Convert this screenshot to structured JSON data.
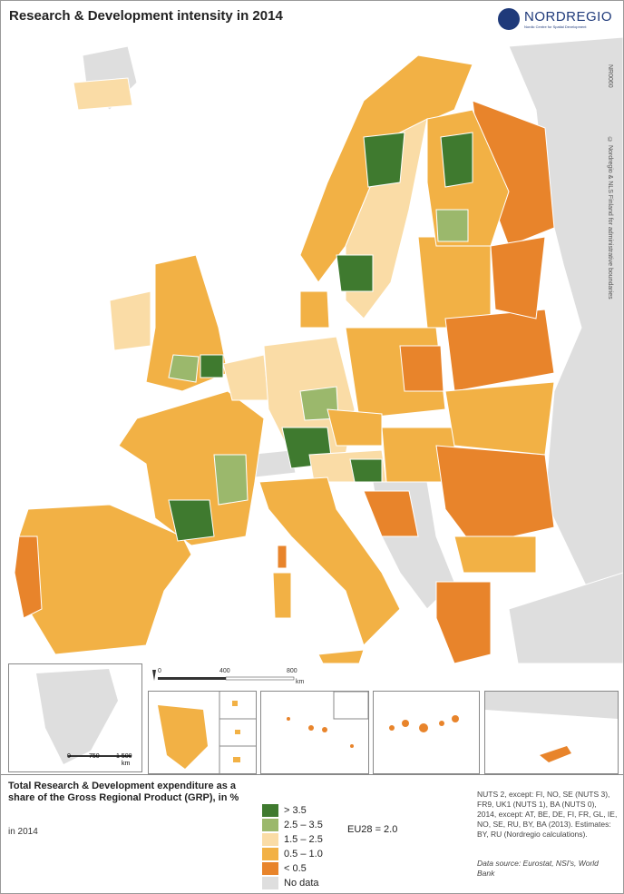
{
  "title": "Research & Development intensity in 2014",
  "logo": {
    "name": "NORDREGIO",
    "subtitle": "Nordic Centre for Spatial Development"
  },
  "map_code": "NR0060",
  "copyright": "© Nordregio & NLS Finland for administrative boundaries",
  "scale_main": {
    "ticks": [
      "0",
      "400",
      "800"
    ],
    "unit": "km"
  },
  "scale_greenland": {
    "ticks": [
      "0",
      "750",
      "1 500"
    ],
    "unit": "km"
  },
  "colors": {
    "gt35": "#3f7a2f",
    "25_35": "#9bb86c",
    "15_25": "#fadca6",
    "05_10": "#f2b145",
    "lt05": "#e8842b",
    "nodata": "#dedede",
    "brand": "#1f3a7a"
  },
  "legend": {
    "title": "Total Research & Development expenditure as a share of the Gross Regional Product (GRP), in %",
    "year": "in 2014",
    "classes": [
      {
        "label": "> 3.5",
        "color": "#3f7a2f"
      },
      {
        "label": "2.5 – 3.5",
        "color": "#9bb86c"
      },
      {
        "label": "1.5 – 2.5",
        "color": "#fadca6"
      },
      {
        "label": "0.5 – 1.0",
        "color": "#f2b145"
      },
      {
        "label": "< 0.5",
        "color": "#e8842b"
      },
      {
        "label": "No data",
        "color": "#dedede"
      }
    ],
    "eu_average": "EU28 = 2.0"
  },
  "notes": "NUTS 2, except: FI, NO, SE (NUTS 3), FR9, UK1 (NUTS 1), BA (NUTS 0), 2014, except: AT, BE, DE, FI, FR, GL, IE, NO, SE, RU, BY, BA (2013). Estimates: BY, RU (Nordregio calculations).",
  "source": "Data source: Eurostat, NSI's, World Bank"
}
